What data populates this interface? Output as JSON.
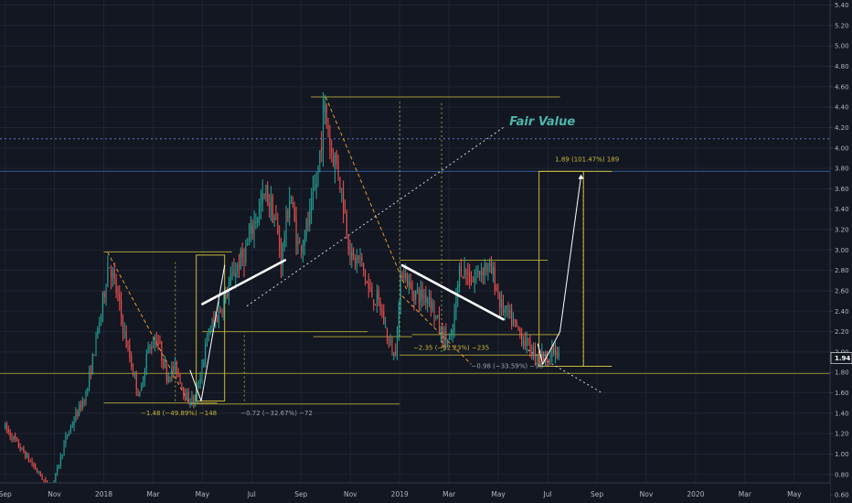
{
  "chart_data": {
    "type": "candlestick",
    "price_axis": {
      "ticks": [
        0.6,
        0.8,
        1.0,
        1.2,
        1.4,
        1.6,
        1.8,
        2.0,
        2.2,
        2.4,
        2.6,
        2.8,
        3.0,
        3.2,
        3.4,
        3.6,
        3.8,
        4.0,
        4.2,
        4.4,
        4.6,
        4.8,
        5.0,
        5.2,
        5.4
      ],
      "tick_labels": [
        "0.60",
        "0.80",
        "1.00",
        "1.20",
        "1.40",
        "1.60",
        "1.80",
        "2.00",
        "2.20",
        "2.40",
        "2.60",
        "2.80",
        "3.00",
        "3.20",
        "3.40",
        "3.60",
        "3.80",
        "4.00",
        "4.20",
        "4.40",
        "4.60",
        "4.80",
        "5.00",
        "5.20",
        "5.40"
      ],
      "last_price": 1.94,
      "last_price_label": "1.94",
      "range": [
        0.52,
        5.45
      ]
    },
    "time_axis": {
      "labels": [
        "Sep",
        "Nov",
        "2018",
        "Mar",
        "May",
        "Jul",
        "Sep",
        "Nov",
        "2019",
        "Mar",
        "May",
        "Jul",
        "Sep",
        "Nov",
        "2020",
        "Mar",
        "May"
      ],
      "month_index": [
        0,
        2,
        4,
        6,
        8,
        10,
        12,
        14,
        16,
        18,
        20,
        22,
        24,
        26,
        28,
        30,
        32
      ],
      "range_months": [
        -0.06,
        33.6
      ]
    },
    "candles": {
      "anchors": [
        [
          0.0,
          1.26
        ],
        [
          1.1,
          0.9
        ],
        [
          1.75,
          0.68
        ],
        [
          2.0,
          0.75
        ],
        [
          2.5,
          1.18
        ],
        [
          3.3,
          1.6
        ],
        [
          3.9,
          2.4
        ],
        [
          4.2,
          2.9
        ],
        [
          4.55,
          2.55
        ],
        [
          4.9,
          2.1
        ],
        [
          5.45,
          1.55
        ],
        [
          5.75,
          2.0
        ],
        [
          6.15,
          2.15
        ],
        [
          6.55,
          1.78
        ],
        [
          6.95,
          1.85
        ],
        [
          7.35,
          1.55
        ],
        [
          7.7,
          1.52
        ],
        [
          8.25,
          2.2
        ],
        [
          8.8,
          2.45
        ],
        [
          9.3,
          2.8
        ],
        [
          9.7,
          2.95
        ],
        [
          10.2,
          3.35
        ],
        [
          10.6,
          3.55
        ],
        [
          10.95,
          3.3
        ],
        [
          11.2,
          2.9
        ],
        [
          11.55,
          3.55
        ],
        [
          11.9,
          3.0
        ],
        [
          12.35,
          3.3
        ],
        [
          12.65,
          3.7
        ],
        [
          12.95,
          4.4
        ],
        [
          13.2,
          4.0
        ],
        [
          13.5,
          3.8
        ],
        [
          13.75,
          3.4
        ],
        [
          14.05,
          2.9
        ],
        [
          14.4,
          2.9
        ],
        [
          14.75,
          2.6
        ],
        [
          15.2,
          2.45
        ],
        [
          15.55,
          2.1
        ],
        [
          15.8,
          1.95
        ],
        [
          16.1,
          2.85
        ],
        [
          16.45,
          2.6
        ],
        [
          16.85,
          2.55
        ],
        [
          17.2,
          2.55
        ],
        [
          17.7,
          2.15
        ],
        [
          18.1,
          2.1
        ],
        [
          18.45,
          2.85
        ],
        [
          18.95,
          2.7
        ],
        [
          19.45,
          2.85
        ],
        [
          19.8,
          2.75
        ],
        [
          20.1,
          2.45
        ],
        [
          20.55,
          2.3
        ],
        [
          20.95,
          2.15
        ],
        [
          21.4,
          2.0
        ],
        [
          21.9,
          1.95
        ],
        [
          22.25,
          2.0
        ],
        [
          22.45,
          1.95
        ]
      ],
      "count": 330
    },
    "horizontal_lines": [
      {
        "price": 4.09,
        "style": "dotted",
        "color": "#5d7fb5",
        "name": "Fair Value"
      },
      {
        "price": 3.77,
        "style": "solid",
        "color": "#2f5b92"
      },
      {
        "price": 1.79,
        "style": "solid",
        "color": "#8c8a2a"
      }
    ],
    "fair_value_label": "Fair Value",
    "measures": [
      {
        "text": "−1.48 (−49.89%) −148",
        "color": "#c9b93a"
      },
      {
        "text": "−0.72 (−32.67%) −72",
        "color": "#9aa3b0"
      },
      {
        "text": "−2.35 (−52.23%) −235",
        "color": "#c9b93a"
      },
      {
        "text": "−0.98 (−33.59%) −98",
        "color": "#9aa3b0"
      },
      {
        "text": "1.89 (101.47%) 189",
        "color": "#c9b93a"
      }
    ],
    "colors": {
      "background": "#131722",
      "up": "#26a69a",
      "down": "#ef5350",
      "grid": "#1e2433",
      "axis_text": "#b2b5be",
      "fib": "#a39a36",
      "projection": "#c9b93a",
      "last_price_bg": "#131722",
      "fair_value_text": "#4db6ac"
    }
  }
}
